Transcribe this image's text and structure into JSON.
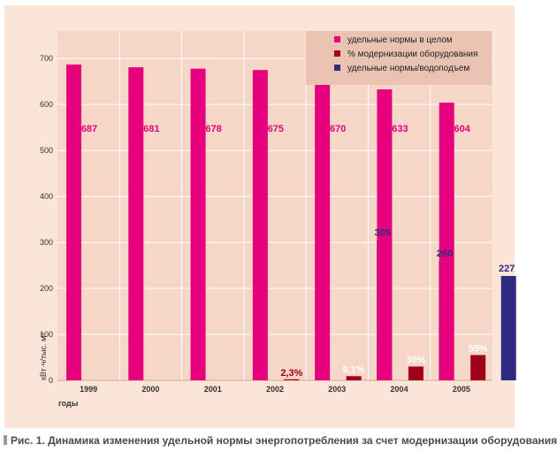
{
  "colors": {
    "outer_bg": "#fbe4d8",
    "plot_bg": "#f6d6c6",
    "legend_bg": "#e9c2b2",
    "gridline": "#ffffff",
    "specific_total": "#e6007e",
    "modernization_pct": "#a00018",
    "pumping": "#2e2a7f",
    "caption_text": "#4a4a4a"
  },
  "chart_data": {
    "type": "bar",
    "categories": [
      "1999",
      "2000",
      "2001",
      "2002",
      "2003",
      "2004",
      "2005"
    ],
    "series": [
      {
        "name": "удельные нормы в целом",
        "values": [
          687,
          681,
          678,
          675,
          670,
          633,
          604
        ]
      },
      {
        "name": "% модернизации оборудования",
        "values": [
          null,
          null,
          null,
          2.3,
          9.1,
          30,
          55
        ]
      },
      {
        "name": "удельные нормы/водоподъем",
        "values": [
          null,
          null,
          null,
          null,
          305,
          260,
          227
        ]
      }
    ],
    "data_labels": {
      "total": [
        "687",
        "681",
        "678",
        "675",
        "670",
        "633",
        "604"
      ],
      "modernization": [
        "",
        "",
        "",
        "2,3%",
        "9,1%",
        "30%",
        "55%"
      ],
      "pumping": [
        "",
        "",
        "",
        "",
        "305",
        "260",
        "227"
      ]
    },
    "yticks": [
      "0",
      "100",
      "200",
      "300",
      "400",
      "500",
      "600",
      "700"
    ],
    "ylim": [
      0,
      760
    ],
    "ylabel": "кВт·ч/тыс. м³",
    "xlabel": "годы",
    "grid": true,
    "legend_position": "top-right",
    "caption": "Рис. 1. Динамика изменения удельной нормы энергопотребления за счет модернизации оборудования"
  }
}
